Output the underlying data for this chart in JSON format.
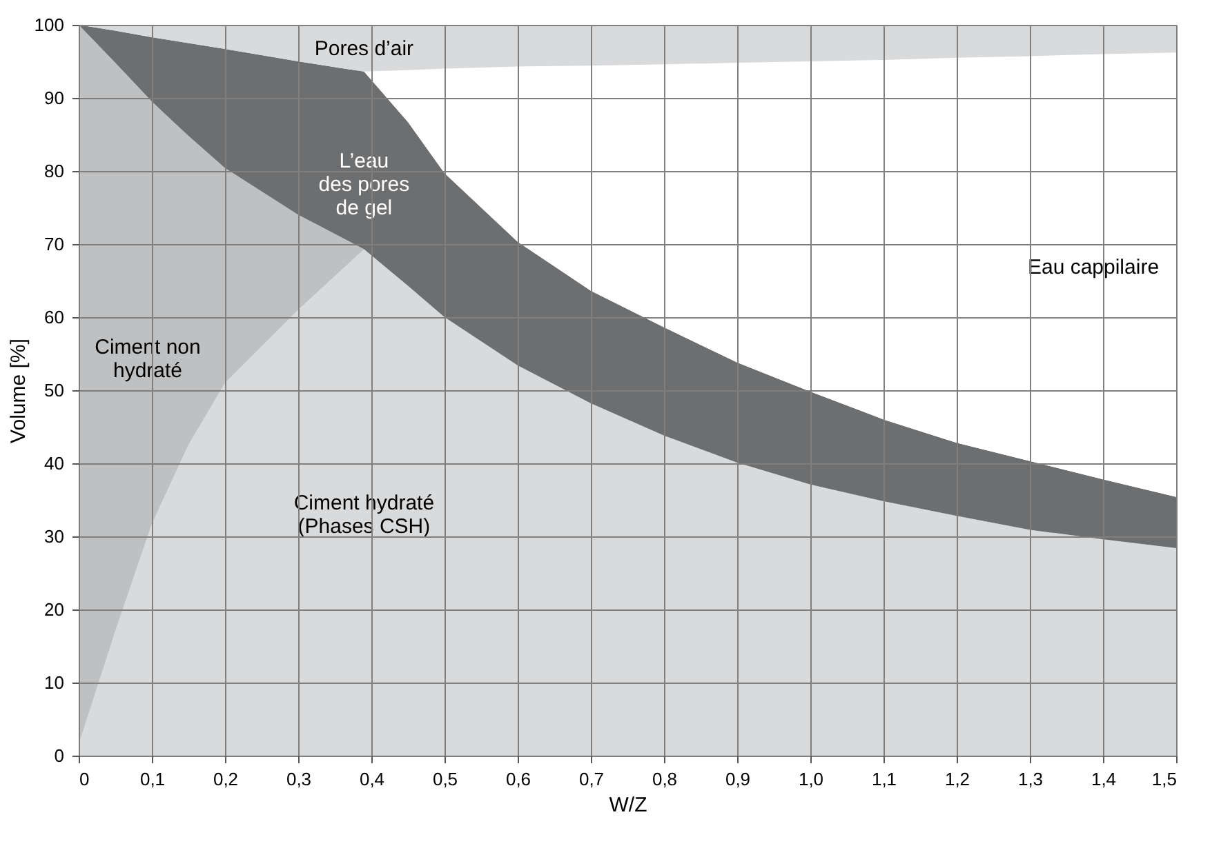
{
  "chart_data": {
    "type": "area",
    "stacked": true,
    "xlabel": "W/Z",
    "ylabel": "Volume [%]",
    "x": [
      0,
      0.05,
      0.1,
      0.15,
      0.2,
      0.3,
      0.39,
      0.45,
      0.5,
      0.6,
      0.7,
      0.8,
      0.9,
      1.0,
      1.1,
      1.2,
      1.3,
      1.4,
      1.5
    ],
    "series": [
      {
        "name": "Ciment hydraté\n(Phases CSH)",
        "color": "#d9dadc",
        "values": [
          1.5,
          17,
          31.7,
          42.5,
          51,
          61,
          69.3,
          64.3,
          60,
          53.4,
          48.2,
          43.8,
          40.1,
          37.1,
          34.8,
          32.8,
          30.9,
          29.6,
          28.4
        ]
      },
      {
        "name": "Ciment non\nhydraté",
        "color": "#bfc0c2",
        "values": [
          98.5,
          77.8,
          57.8,
          42.3,
          29.4,
          13,
          0,
          0,
          0,
          0,
          0,
          0,
          0,
          0,
          0,
          0,
          0,
          0,
          0
        ]
      },
      {
        "name": "L’eau\ndes pores\nde gel",
        "color": "#6d6e70",
        "values": [
          0,
          4.4,
          8.8,
          12.7,
          16.3,
          21,
          24.3,
          22.4,
          19.7,
          16.9,
          15.4,
          14.8,
          13.7,
          12.7,
          11.2,
          10,
          9.4,
          8.2,
          7
        ]
      },
      {
        "name": "Eau cappilaire",
        "color": "#ffffff",
        "values": [
          0,
          0,
          0,
          0,
          0,
          0,
          0,
          7.1,
          14.3,
          24,
          30.8,
          36,
          41,
          45.2,
          49.2,
          52.7,
          55.4,
          58.2,
          60.8
        ]
      },
      {
        "name": "Pores d’air",
        "color": "#d9dadc",
        "values": [
          0,
          0.8,
          1.7,
          2.5,
          3.3,
          5,
          6.4,
          6.2,
          6,
          5.7,
          5.6,
          5.4,
          5.2,
          5.0,
          4.8,
          4.5,
          4.3,
          4.0,
          3.8
        ]
      }
    ],
    "xlim": [
      0,
      1.5
    ],
    "xticks": [
      0,
      {
        "value": 0.1,
        "label": "0,1"
      },
      {
        "value": 0.2,
        "label": "0,2"
      },
      {
        "value": 0.3,
        "label": "0,3"
      },
      {
        "value": 0.4,
        "label": "0,4"
      },
      {
        "value": 0.5,
        "label": "0,5"
      },
      {
        "value": 0.6,
        "label": "0,6"
      },
      {
        "value": 0.7,
        "label": "0,7"
      },
      {
        "value": 0.8,
        "label": "0,8"
      },
      {
        "value": 0.9,
        "label": "0,9"
      },
      {
        "value": 1,
        "label": "1,0"
      },
      {
        "value": 1.1,
        "label": "1,1"
      },
      {
        "value": 1.2,
        "label": "1,2"
      },
      {
        "value": 1.3,
        "label": "1,3"
      },
      {
        "value": 1.4,
        "label": "1,4"
      },
      {
        "value": 1.5,
        "label": "1,5"
      }
    ],
    "ylim": [
      0,
      100
    ],
    "yticks": [
      0,
      10,
      20,
      30,
      40,
      50,
      60,
      70,
      80,
      90,
      100
    ],
    "grid": true
  }
}
